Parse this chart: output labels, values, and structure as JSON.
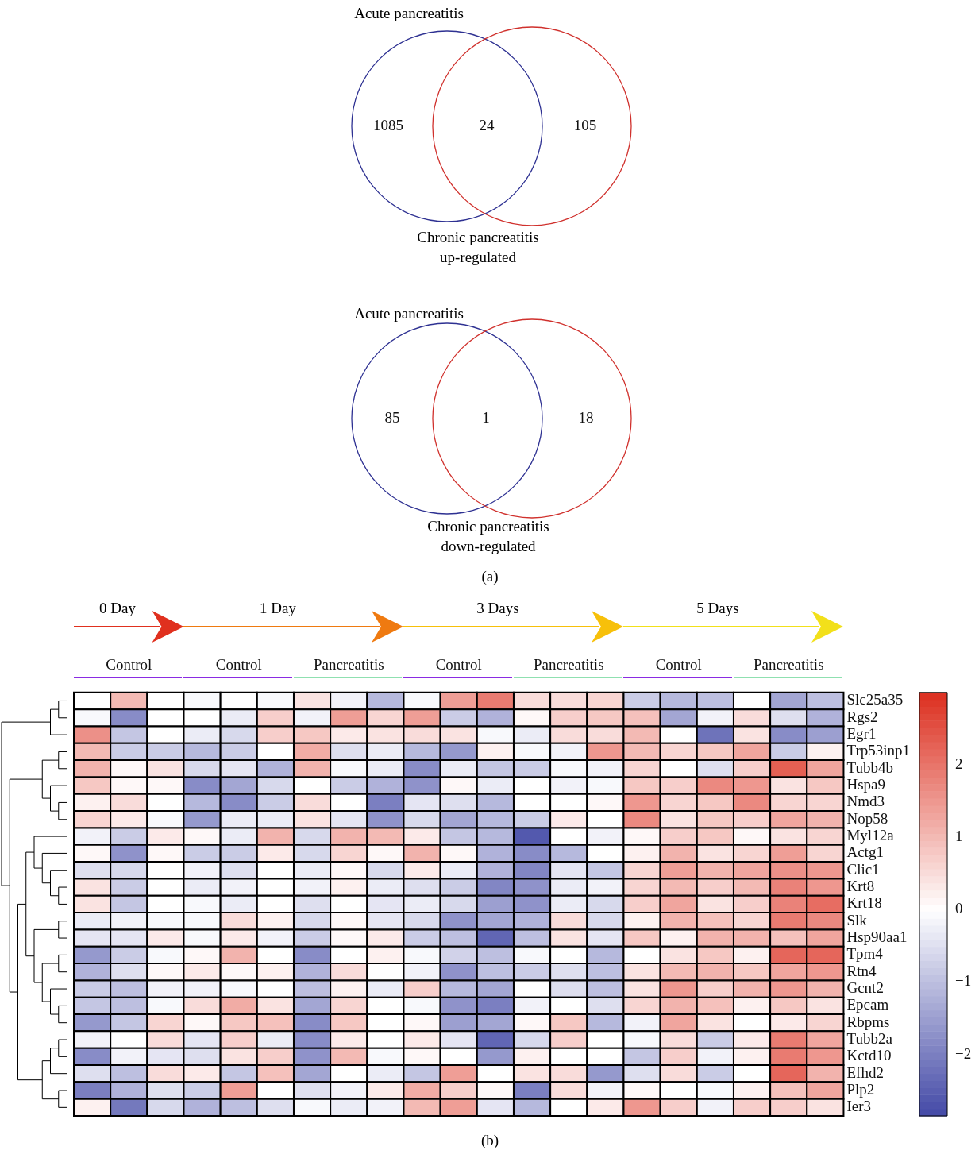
{
  "chart_data": [
    {
      "type": "other",
      "title": "Acute pancreatitis",
      "xlabel": "Chronic pancreatitis\nup-regulated",
      "categories": [
        null,
        null,
        null
      ],
      "values": [
        1085,
        24,
        105
      ],
      "data_labels": true
    },
    {
      "type": "other",
      "title": "Acute pancreatitis",
      "xlabel": "Chronic pancreatitis\ndown-regulated",
      "categories": [
        null,
        null,
        null
      ],
      "values": [
        85,
        1,
        18
      ],
      "data_labels": true,
      "annotations": [
        "(a)"
      ]
    },
    {
      "type": "heatmap",
      "categories": [
        null,
        "Control",
        null,
        null,
        "Control",
        null,
        null,
        "Pancreatitis",
        null,
        null,
        "Control",
        null,
        null,
        "Pancreatitis",
        null,
        null,
        "Control",
        null,
        null,
        "Pancreatitis",
        null
      ],
      "y_categories": [
        "Slc25a35",
        "Rgs2",
        "Egr1",
        "Trp53inp1",
        "Tubb4b",
        "Hspa9",
        "Nmd3",
        "Nop58",
        "Myl12a",
        "Actg1",
        "Clic1",
        "Krt8",
        "Krt18",
        "Slk",
        "Hsp90aa1",
        "Tpm4",
        "Rtn4",
        "Gcnt2",
        "Epcam",
        "Rbpms",
        "Tubb2a",
        "Kctd10",
        "Efhd2",
        "Plp2",
        "Ier3"
      ],
      "cells": [
        [
          0,
          1.0,
          0,
          -0.1,
          0,
          -0.1,
          0.4,
          -0.2,
          -1.1,
          -0.1,
          1.4,
          1.9,
          0.5,
          0.5,
          0.6,
          -0.8,
          -1.1,
          -1.0,
          0,
          -1.4,
          -1.0
        ],
        [
          -0.1,
          -1.8,
          0,
          0,
          -0.3,
          0.7,
          -0.2,
          1.4,
          0.6,
          1.4,
          -0.8,
          -1.2,
          0.1,
          0.7,
          0.8,
          0.9,
          -1.4,
          -0.2,
          0.5,
          -0.5,
          -1.2
        ],
        [
          1.6,
          -0.9,
          0,
          -0.3,
          -0.6,
          0.7,
          0.8,
          0.3,
          0.4,
          0.5,
          0.4,
          -0.1,
          -0.3,
          0.5,
          0.5,
          1.0,
          0,
          -2.2,
          0.4,
          -1.8,
          -1.5
        ],
        [
          1.0,
          -0.8,
          -0.8,
          -1.1,
          -0.8,
          0,
          1.2,
          -0.5,
          -0.3,
          -1.1,
          -1.6,
          0.2,
          -0.1,
          -0.2,
          1.5,
          1.0,
          0.6,
          0.8,
          1.3,
          -0.8,
          0.2
        ],
        [
          1.1,
          0.1,
          0.4,
          -0.6,
          -0.4,
          -1.2,
          1.1,
          -0.1,
          -0.3,
          -1.8,
          -0.3,
          -0.9,
          -0.8,
          -0.1,
          -0.2,
          0.6,
          0,
          -0.5,
          0.7,
          2.3,
          1.3
        ],
        [
          0.8,
          0.1,
          0.1,
          -1.8,
          -1.4,
          -0.6,
          0,
          -0.8,
          -1.2,
          -1.7,
          0.1,
          -0.3,
          0,
          -0.2,
          -0.1,
          0.8,
          0.7,
          1.7,
          1.5,
          0.4,
          0.8
        ],
        [
          0.2,
          0.5,
          0,
          -1.1,
          -1.8,
          -0.8,
          0.5,
          0,
          -2.0,
          -0.4,
          -0.5,
          -1.1,
          0,
          0,
          0.1,
          1.5,
          0.6,
          0.8,
          1.7,
          0.6,
          0.6
        ],
        [
          0.6,
          0.3,
          -0.1,
          -1.6,
          -0.3,
          -0.3,
          0.4,
          -0.4,
          -1.7,
          -0.6,
          -1.4,
          -1.1,
          -0.8,
          0.3,
          0,
          1.7,
          0.4,
          0.8,
          0.7,
          1.3,
          1.1
        ],
        [
          -0.2,
          -0.8,
          0.3,
          0.1,
          -0.3,
          1.1,
          -0.6,
          1.1,
          1.0,
          0.3,
          -0.9,
          -1.1,
          -2.6,
          0,
          -0.2,
          0.1,
          0.7,
          0.8,
          0.1,
          0.4,
          0.6
        ],
        [
          0.1,
          -1.7,
          0.1,
          -0.8,
          -0.8,
          0.3,
          -0.6,
          0.6,
          0.1,
          1.1,
          0.1,
          -1.2,
          -1.8,
          -1.1,
          0,
          0.2,
          1.1,
          0.4,
          0.6,
          1.4,
          0.6
        ],
        [
          -0.5,
          -0.6,
          0,
          -0.2,
          -0.5,
          0,
          -0.3,
          0.1,
          -0.6,
          0.3,
          -0.3,
          -1.2,
          -1.9,
          -0.4,
          -0.9,
          0.6,
          1.4,
          1.1,
          1.3,
          1.6,
          1.5
        ],
        [
          0.4,
          -0.8,
          0,
          -0.3,
          -0.2,
          0,
          -0.2,
          0.2,
          -0.3,
          -0.5,
          -0.8,
          -1.9,
          -1.7,
          -0.3,
          -0.2,
          0.6,
          1.0,
          0.7,
          1.0,
          1.8,
          1.5
        ],
        [
          0.4,
          -0.9,
          0,
          -0.1,
          -0.3,
          0,
          -0.5,
          0,
          -0.4,
          -0.3,
          -0.6,
          -1.5,
          -1.7,
          -0.3,
          -0.6,
          0.7,
          1.3,
          0.4,
          0.7,
          1.8,
          2.1
        ],
        [
          -0.3,
          -0.2,
          -0.1,
          -0.1,
          0.5,
          0.2,
          -0.6,
          0.1,
          -0.4,
          -0.6,
          -1.7,
          -1.4,
          -1.2,
          0.5,
          -0.6,
          0.2,
          1.1,
          0.9,
          0.6,
          1.9,
          1.7
        ],
        [
          -0.4,
          -0.4,
          0.3,
          -0.1,
          0.3,
          -0.2,
          -0.8,
          0.1,
          0.3,
          -0.8,
          -1.0,
          -2.4,
          -1.0,
          0.4,
          -0.4,
          0.8,
          0.2,
          1.1,
          1.1,
          0.9,
          1.3
        ],
        [
          -1.6,
          -0.8,
          -0.1,
          0.1,
          1.1,
          0,
          -1.8,
          0,
          0.2,
          -0.1,
          -0.7,
          -1.0,
          -0.1,
          0,
          -1.1,
          0,
          0.4,
          0.8,
          0.2,
          2.2,
          2.2
        ],
        [
          -1.2,
          -0.5,
          0.1,
          0.3,
          0.1,
          0.2,
          -1.2,
          0.5,
          0,
          -0.2,
          -1.7,
          -1.0,
          -0.8,
          -0.5,
          -1.0,
          0.4,
          1.0,
          1.1,
          0.8,
          1.3,
          1.5
        ],
        [
          -0.8,
          -1.0,
          -0.2,
          -0.2,
          -0.1,
          0,
          -1.0,
          0.2,
          -0.3,
          0.7,
          -1.1,
          -1.4,
          0,
          -0.5,
          -1.0,
          0.4,
          1.5,
          0.7,
          1.1,
          1.5,
          1.1
        ],
        [
          -0.9,
          -1.0,
          -0.1,
          0.5,
          1.2,
          0.4,
          -1.4,
          0.6,
          0,
          -0.1,
          -1.7,
          -2.0,
          -0.2,
          0,
          -0.5,
          0.6,
          1.1,
          0.9,
          0.2,
          0.8,
          0.4
        ],
        [
          -1.6,
          -0.9,
          0.6,
          0.1,
          0.8,
          0.9,
          -1.8,
          0.8,
          0,
          0.1,
          -1.5,
          -1.4,
          0.1,
          0.8,
          -1.1,
          -0.2,
          1.3,
          0.4,
          0,
          0.3,
          0.6
        ],
        [
          -0.2,
          0,
          0.5,
          -0.4,
          0.7,
          -0.3,
          -1.8,
          0.3,
          0,
          0.3,
          -0.4,
          -2.4,
          -0.6,
          0.7,
          0,
          -0.1,
          0.5,
          -0.8,
          0.3,
          1.9,
          1.3
        ],
        [
          -1.8,
          -0.2,
          -0.4,
          -0.5,
          0.4,
          0.7,
          -1.7,
          1.0,
          -0.1,
          0.1,
          0,
          -1.6,
          0.2,
          0,
          0,
          -0.9,
          0.7,
          -0.2,
          0.2,
          1.9,
          1.5
        ],
        [
          -0.5,
          -1.0,
          0.5,
          0.3,
          -0.9,
          0.9,
          -1.4,
          0,
          -0.3,
          -0.9,
          1.4,
          0,
          0.4,
          0.5,
          -1.6,
          -0.5,
          0.5,
          -0.8,
          0,
          2.2,
          1.1
        ],
        [
          -2.0,
          -1.2,
          -0.5,
          -0.8,
          1.4,
          0,
          -0.5,
          -0.2,
          0.3,
          1.2,
          0.7,
          0.1,
          -2.0,
          0.5,
          -0.2,
          0.1,
          0,
          -0.1,
          0.2,
          0.9,
          1.3
        ],
        [
          0.2,
          -2.1,
          -0.6,
          -1.2,
          -1.0,
          -0.5,
          -0.1,
          -0.3,
          -0.2,
          1.0,
          1.4,
          -0.4,
          -1.1,
          0,
          0.3,
          1.5,
          0.7,
          -0.2,
          0.7,
          0.7,
          0.4
        ]
      ],
      "clim": [
        -2.85,
        3.0
      ],
      "cticks": [
        -2,
        -1,
        0,
        1,
        2
      ],
      "annotations": [
        "0 Day",
        "1 Day",
        "3 Days",
        "5 Days",
        "(b)"
      ]
    }
  ]
}
